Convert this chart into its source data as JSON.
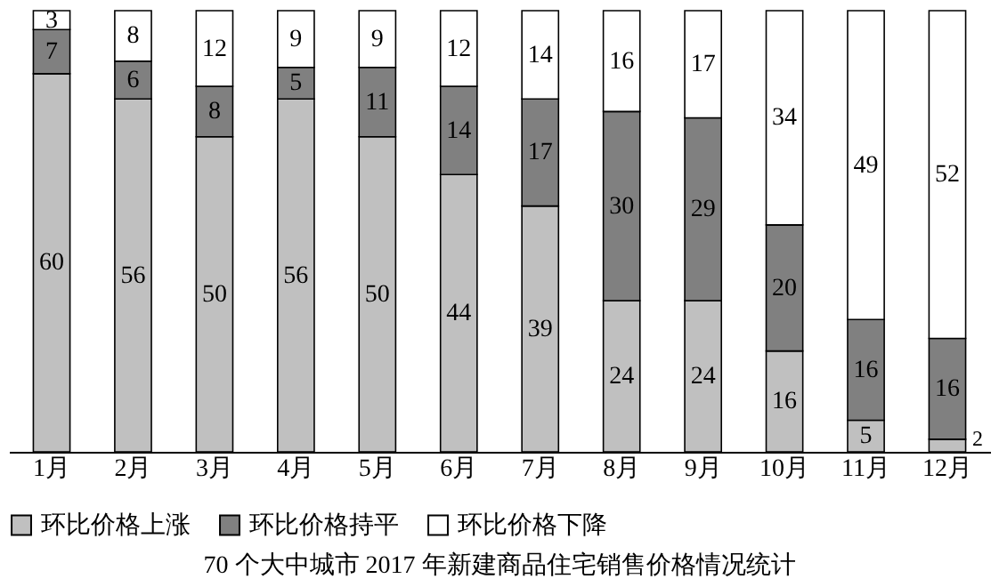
{
  "chart_data": {
    "type": "bar",
    "title": "70 个大中城市 2017 年新建商品住宅销售价格情况统计",
    "categories": [
      "1月",
      "2月",
      "3月",
      "4月",
      "5月",
      "6月",
      "7月",
      "8月",
      "9月",
      "10月",
      "11月",
      "12月"
    ],
    "stacked": true,
    "data_labels": true,
    "legend": "bottom",
    "tick_labels": "x",
    "series": [
      {
        "name": "环比价格上涨",
        "color": "#c0c0c0",
        "values": [
          60,
          56,
          50,
          56,
          50,
          44,
          39,
          24,
          24,
          16,
          5,
          2
        ]
      },
      {
        "name": "环比价格持平",
        "color": "#808080",
        "values": [
          7,
          6,
          8,
          5,
          11,
          14,
          17,
          30,
          29,
          20,
          16,
          16
        ]
      },
      {
        "name": "环比价格下降",
        "color": "#ffffff",
        "values": [
          3,
          8,
          12,
          9,
          9,
          12,
          14,
          16,
          17,
          34,
          49,
          52
        ]
      }
    ]
  }
}
